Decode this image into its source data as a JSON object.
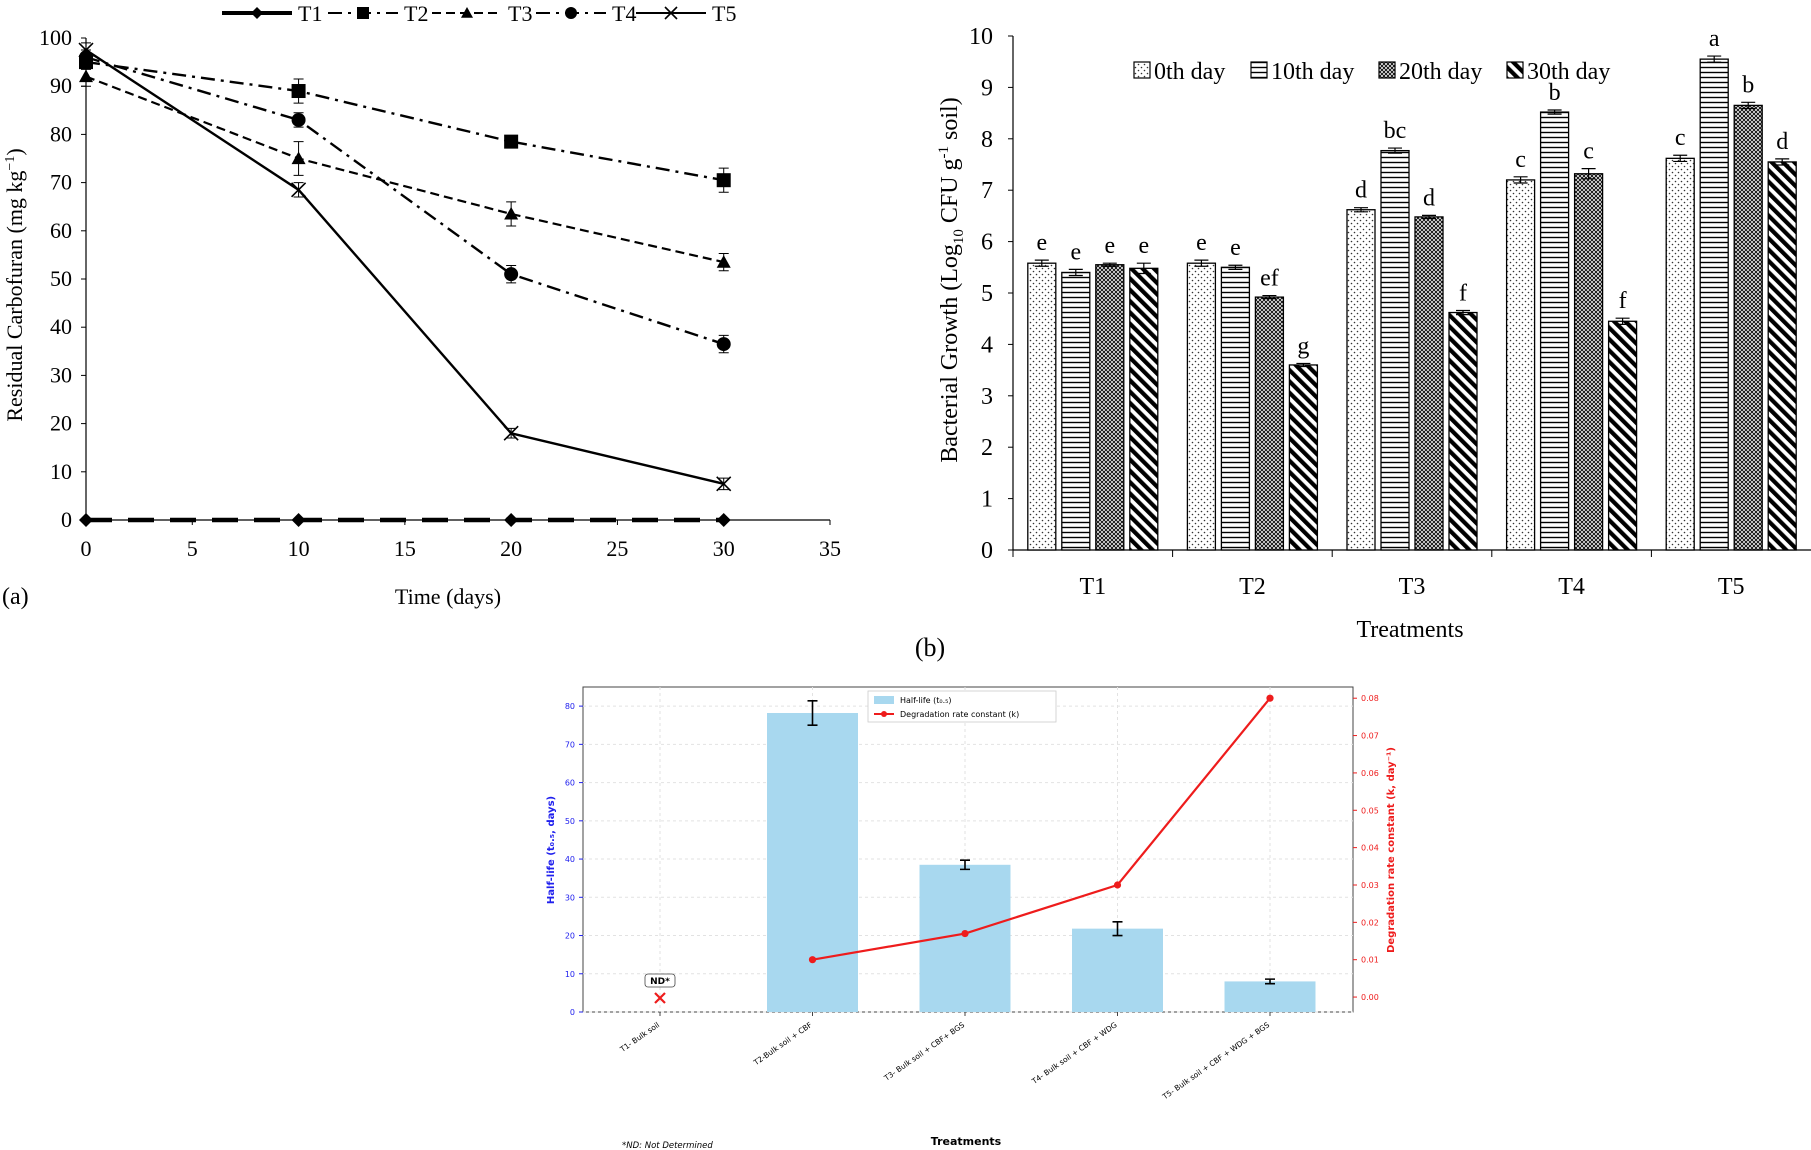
{
  "chart_data": [
    {
      "id": "a",
      "type": "line",
      "panel_label": "(a)",
      "xlabel": "Time  (days)",
      "ylabel": "Residual  Carbofuran  (mg  kg",
      "ylabel_sup": "−1",
      "ylabel_close": ")",
      "xlim": [
        0,
        35
      ],
      "ylim": [
        0,
        100
      ],
      "xticks": [
        "0",
        "5",
        "10",
        "15",
        "20",
        "25",
        "30",
        "35"
      ],
      "yticks": [
        "0",
        "10",
        "20",
        "30",
        "40",
        "50",
        "60",
        "70",
        "80",
        "90",
        "100"
      ],
      "x": [
        0,
        10,
        20,
        30
      ],
      "legend_position": "top",
      "series": [
        {
          "name": "T1",
          "marker": "diamond",
          "dash": "long-dash",
          "values": [
            0,
            0,
            0,
            0
          ],
          "errors": [
            0,
            0,
            0,
            0
          ]
        },
        {
          "name": "T2",
          "marker": "square",
          "dash": "dash-dot",
          "values": [
            95,
            89,
            78.5,
            70.5
          ],
          "errors": [
            1.5,
            2.5,
            1.2,
            2.5
          ]
        },
        {
          "name": "T3",
          "marker": "triangle",
          "dash": "dashed",
          "values": [
            92,
            75,
            63.5,
            53.5
          ],
          "errors": [
            2,
            3.5,
            2.5,
            1.8
          ]
        },
        {
          "name": "T4",
          "marker": "circle",
          "dash": "dash-dot",
          "values": [
            96,
            83,
            51,
            36.5
          ],
          "errors": [
            1.5,
            1.5,
            1.8,
            1.8
          ]
        },
        {
          "name": "T5",
          "marker": "x",
          "dash": "solid",
          "values": [
            97.5,
            68.5,
            18,
            7.5
          ],
          "errors": [
            1.5,
            1.5,
            1,
            1.2
          ]
        }
      ]
    },
    {
      "id": "b",
      "type": "bar",
      "panel_label": "(b)",
      "xlabel": "Treatments",
      "ylabel_pre": "Bacterial  Growth  (Log",
      "ylabel_sub": "10",
      "ylabel_mid": " CFU g",
      "ylabel_sup": "-1",
      "ylabel_post": " soil)",
      "ylim": [
        0,
        10
      ],
      "yticks": [
        "0",
        "1",
        "2",
        "3",
        "4",
        "5",
        "6",
        "7",
        "8",
        "9",
        "10"
      ],
      "categories": [
        "T1",
        "T2",
        "T3",
        "T4",
        "T5"
      ],
      "legend_position": "top-right",
      "series": [
        {
          "name": "0th day",
          "pattern": "dots",
          "values": [
            5.58,
            5.58,
            6.62,
            7.2,
            7.62
          ],
          "errors": [
            0.06,
            0.06,
            0.04,
            0.06,
            0.06
          ],
          "letters": [
            "e",
            "e",
            "d",
            "c",
            "c"
          ]
        },
        {
          "name": "10th day",
          "pattern": "hlines",
          "values": [
            5.4,
            5.5,
            7.77,
            8.52,
            9.55
          ],
          "errors": [
            0.06,
            0.04,
            0.05,
            0.04,
            0.06
          ],
          "letters": [
            "e",
            "e",
            "bc",
            "b",
            "a"
          ]
        },
        {
          "name": "20th day",
          "pattern": "crosshatch",
          "values": [
            5.55,
            4.92,
            6.48,
            7.32,
            8.65
          ],
          "errors": [
            0.03,
            0.03,
            0.03,
            0.1,
            0.06
          ],
          "letters": [
            "e",
            "ef",
            "d",
            "c",
            "b"
          ]
        },
        {
          "name": "30th day",
          "pattern": "diag",
          "values": [
            5.48,
            3.6,
            4.62,
            4.45,
            7.55
          ],
          "errors": [
            0.1,
            0.03,
            0.04,
            0.06,
            0.06
          ],
          "letters": [
            "e",
            "g",
            "f",
            "f",
            "d"
          ]
        }
      ]
    },
    {
      "id": "c",
      "type": "bar",
      "xlabel": "Treatments",
      "ylabel": "Half-life (t₀.₅, days)",
      "y2label": "Degradation rate constant (k, day⁻¹)",
      "ylim": [
        0,
        85
      ],
      "y2lim": [
        -0.004,
        0.083
      ],
      "yticks": [
        "0",
        "10",
        "20",
        "30",
        "40",
        "50",
        "60",
        "70",
        "80"
      ],
      "y2ticks": [
        "0.00",
        "0.01",
        "0.02",
        "0.03",
        "0.04",
        "0.05",
        "0.06",
        "0.07",
        "0.08"
      ],
      "categories": [
        "T1- Bulk soil",
        "T2-Bulk soil + CBF",
        "T3- Bulk soil + CBF+ BGS",
        "T4- Bulk soil + CBF + WDG",
        "T5- Bulk soil + CBF + WDG + BGS"
      ],
      "half_life": [
        null,
        78.2,
        38.5,
        21.8,
        8
      ],
      "half_life_errors": [
        null,
        3.2,
        1.2,
        1.8,
        0.6
      ],
      "rate_constant": [
        null,
        0.01,
        0.017,
        0.03,
        0.08
      ],
      "legend": [
        "Half-life (t₀.₅)",
        "Degradation rate constant (k)"
      ],
      "legend_position": "top-center",
      "nd_marker": "ND*",
      "footnote": "*ND: Not Determined",
      "colors": {
        "bar": "#a8d8ef",
        "line": "#ee1c1c",
        "left_axis": "#2020ee",
        "right_axis": "#ee1c1c"
      }
    }
  ]
}
